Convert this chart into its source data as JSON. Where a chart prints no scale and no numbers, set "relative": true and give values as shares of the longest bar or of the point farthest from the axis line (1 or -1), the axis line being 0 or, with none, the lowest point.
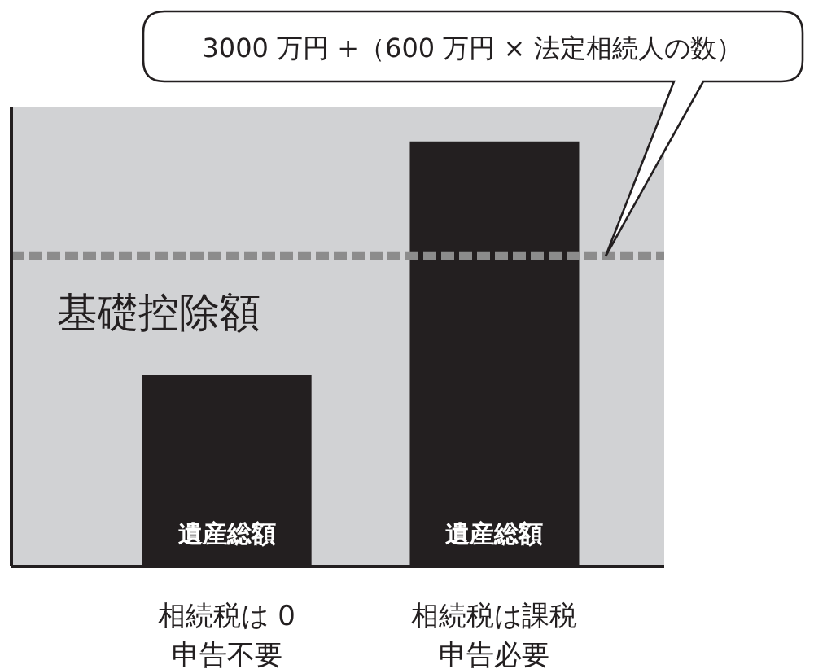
{
  "chart_data": {
    "type": "bar",
    "relative": true,
    "categories": [
      "相続税は 0申告不要",
      "相続税は課税申告必要"
    ],
    "series": [
      {
        "name": "遺産総額",
        "color": "#231f20",
        "values": [
          0.45,
          1
        ]
      }
    ],
    "ref_lines": [
      {
        "axis": "y",
        "value": 0.73,
        "label": "基礎控除額",
        "color": "#8c8c8c",
        "line_style": "dashed"
      }
    ],
    "annotations": [
      "3000 万円 +（600 万円 × 法定相続人の数）"
    ]
  }
}
